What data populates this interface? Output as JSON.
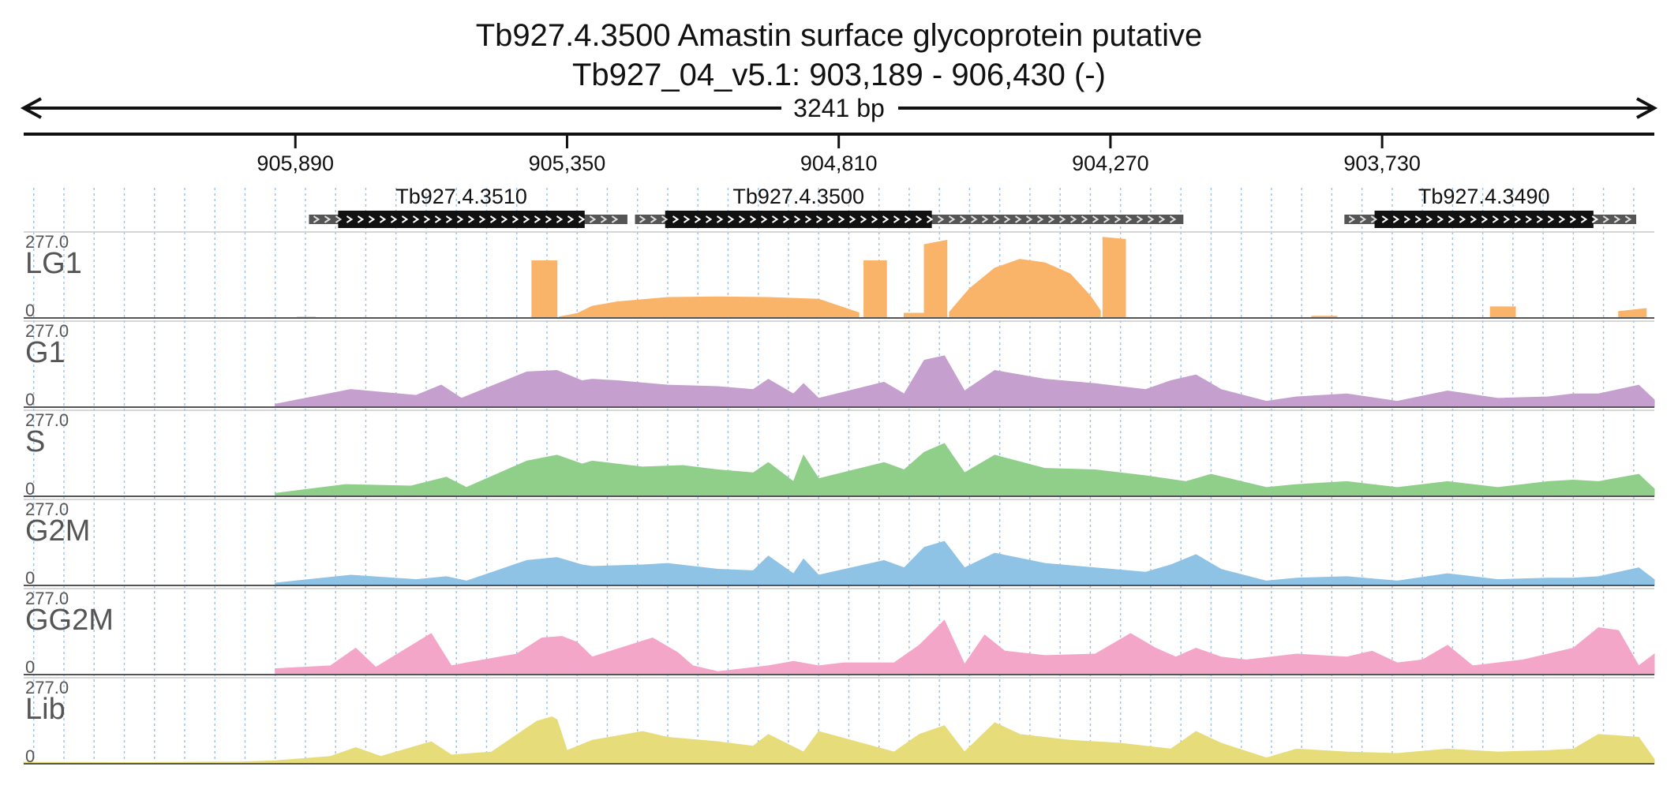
{
  "title": {
    "line1": "Tb927.4.3500  Amastin surface glycoprotein  putative",
    "line2": "Tb927_04_v5.1: 903,189 - 906,430 (-)",
    "span_label": "3241 bp"
  },
  "chart_data": {
    "type": "area",
    "x_axis": {
      "start": 906430,
      "end": 903189,
      "reversed": true,
      "ticks": [
        905890,
        905350,
        904810,
        904270,
        903730
      ],
      "tick_labels": [
        "905,890",
        "905,350",
        "904,810",
        "904,270",
        "903,730"
      ],
      "gridlines": "dotted vertical"
    },
    "genes": [
      {
        "name": "Tb927.4.3510",
        "utr_start": 905863,
        "cds_start": 905805,
        "cds_end": 905315,
        "utr_end": 905230
      },
      {
        "name": "Tb927.4.3500",
        "utr_start": 905215,
        "cds_start": 905155,
        "cds_end": 904625,
        "utr_end": 904125
      },
      {
        "name": "Tb927.4.3490",
        "utr_start": 903805,
        "cds_start": 903745,
        "cds_end": 903310,
        "utr_end": 903225
      }
    ],
    "tracks": [
      {
        "name": "LG1",
        "ymax": 277.0,
        "ymin": 0,
        "color": "#f9b46a",
        "segments": [
          {
            "x": [
              905886,
              905850
            ],
            "y": [
              3,
              3
            ]
          },
          {
            "x": [
              905420,
              905370
            ],
            "y": [
              195,
              195
            ]
          },
          {
            "x": [
              905365,
              905330,
              905300,
              905250,
              905150,
              905050,
              904950,
              904850,
              904770
            ],
            "y": [
              4,
              15,
              40,
              55,
              70,
              72,
              70,
              64,
              18
            ]
          },
          {
            "x": [
              904760,
              904715
            ],
            "y": [
              195,
              195
            ]
          },
          {
            "x": [
              904680,
              904640
            ],
            "y": [
              16,
              16
            ]
          },
          {
            "x": [
              904640,
              904595
            ],
            "y": [
              250,
              265
            ]
          },
          {
            "x": [
              904590,
              904550,
              904500,
              904450,
              904400,
              904350,
              904310,
              904290
            ],
            "y": [
              20,
              100,
              170,
              200,
              188,
              150,
              75,
              25
            ]
          },
          {
            "x": [
              904285,
              904240
            ],
            "y": [
              275,
              268
            ]
          },
          {
            "x": [
              903870,
              903820
            ],
            "y": [
              6,
              6
            ]
          },
          {
            "x": [
              903515,
              903465
            ],
            "y": [
              38,
              38
            ]
          },
          {
            "x": [
              903260,
              903205
            ],
            "y": [
              22,
              32
            ]
          }
        ]
      },
      {
        "name": "G1",
        "ymax": 277.0,
        "ymin": 0,
        "color": "#c5a0cf",
        "segments": [
          {
            "x": [
              905930,
              905780,
              905650,
              905600,
              905560,
              905430,
              905370,
              905320,
              905300,
              905250,
              905150,
              905050,
              904980,
              904950,
              904900,
              904880,
              904850,
              904720,
              904680,
              904640,
              904600,
              904560,
              904500,
              904400,
              904300,
              904200,
              904150,
              904100,
              904050,
              903960,
              903900,
              903800,
              903700,
              903600,
              903500,
              903400,
              903350,
              903300,
              903220,
              903189
            ],
            "y": [
              10,
              60,
              40,
              75,
              30,
              120,
              125,
              90,
              95,
              90,
              75,
              70,
              60,
              95,
              45,
              80,
              30,
              85,
              45,
              160,
              175,
              55,
              125,
              95,
              80,
              60,
              90,
              110,
              60,
              20,
              35,
              45,
              20,
              55,
              30,
              35,
              45,
              45,
              75,
              25
            ]
          }
        ]
      },
      {
        "name": "S",
        "ymax": 277.0,
        "ymin": 0,
        "color": "#8fcf8a",
        "segments": [
          {
            "x": [
              905930,
              905790,
              905660,
              905590,
              905550,
              905430,
              905370,
              905320,
              905300,
              905200,
              905120,
              905050,
              904980,
              904950,
              904900,
              904880,
              904850,
              904720,
              904680,
              904640,
              904600,
              904560,
              904500,
              904400,
              904300,
              904200,
              904120,
              904070,
              903960,
              903900,
              903800,
              903700,
              903600,
              903500,
              903400,
              903350,
              903300,
              903220,
              903189
            ],
            "y": [
              10,
              40,
              35,
              65,
              30,
              120,
              140,
              110,
              120,
              100,
              105,
              90,
              80,
              115,
              50,
              140,
              60,
              115,
              90,
              150,
              180,
              80,
              140,
              95,
              90,
              70,
              50,
              75,
              30,
              40,
              50,
              30,
              50,
              30,
              50,
              55,
              50,
              75,
              25
            ]
          }
        ]
      },
      {
        "name": "G2M",
        "ymax": 277.0,
        "ymin": 0,
        "color": "#8ec3e6",
        "segments": [
          {
            "x": [
              905930,
              905780,
              905650,
              905590,
              905550,
              905430,
              905370,
              905320,
              905300,
              905200,
              905150,
              905050,
              904980,
              904950,
              904900,
              904880,
              904850,
              904720,
              904680,
              904640,
              904600,
              904560,
              904500,
              904400,
              904300,
              904200,
              904150,
              904100,
              904050,
              903960,
              903900,
              903800,
              903700,
              903600,
              903500,
              903400,
              903350,
              903300,
              903220,
              903189
            ],
            "y": [
              8,
              35,
              20,
              30,
              15,
              85,
              95,
              70,
              65,
              70,
              75,
              55,
              50,
              100,
              40,
              90,
              35,
              85,
              60,
              130,
              150,
              60,
              110,
              75,
              60,
              45,
              70,
              105,
              55,
              15,
              25,
              30,
              15,
              40,
              20,
              25,
              25,
              30,
              60,
              20
            ]
          }
        ]
      },
      {
        "name": "GG2M",
        "ymax": 277.0,
        "ymin": 0,
        "color": "#f4a6c8",
        "segments": [
          {
            "x": [
              905930,
              905820,
              905770,
              905730,
              905620,
              905580,
              905550,
              905450,
              905400,
              905360,
              905330,
              905300,
              905180,
              905130,
              905100,
              905050,
              904950,
              904900,
              904850,
              904800,
              904700,
              904650,
              904600,
              904560,
              904520,
              904480,
              904400,
              904300,
              904230,
              904180,
              904140,
              904100,
              904050,
              904000,
              903900,
              903800,
              903750,
              903700,
              903650,
              903600,
              903550,
              903450,
              903350,
              903300,
              903260,
              903220,
              903189
            ],
            "y": [
              20,
              30,
              90,
              25,
              140,
              30,
              40,
              70,
              125,
              130,
              110,
              60,
              125,
              75,
              30,
              10,
              30,
              45,
              30,
              40,
              40,
              100,
              185,
              35,
              135,
              80,
              65,
              70,
              140,
              90,
              60,
              90,
              60,
              50,
              70,
              60,
              80,
              40,
              50,
              100,
              30,
              50,
              90,
              160,
              150,
              30,
              70
            ]
          }
        ]
      },
      {
        "name": "Lib",
        "ymax": 277.0,
        "ymin": 0,
        "color": "#e6dd7a",
        "segments": [
          {
            "x": [
              906430,
              906200,
              906000,
              905930,
              905820,
              905770,
              905720,
              905620,
              905580,
              905500,
              905440,
              905410,
              905380,
              905370,
              905350,
              905300,
              905200,
              905150,
              905050,
              904980,
              904950,
              904880,
              904850,
              904700,
              904650,
              904600,
              904560,
              904500,
              904450,
              904350,
              904250,
              904150,
              904100,
              904050,
              903960,
              903900,
              903800,
              903700,
              903600,
              903500,
              903400,
              903350,
              903300,
              903220,
              903189
            ],
            "y": [
              5,
              4,
              6,
              10,
              25,
              55,
              25,
              75,
              30,
              40,
              110,
              145,
              160,
              150,
              45,
              80,
              110,
              90,
              75,
              60,
              100,
              40,
              110,
              40,
              100,
              130,
              40,
              140,
              100,
              80,
              70,
              50,
              110,
              70,
              20,
              50,
              40,
              35,
              50,
              40,
              45,
              50,
              100,
              90,
              15
            ]
          }
        ]
      }
    ]
  }
}
